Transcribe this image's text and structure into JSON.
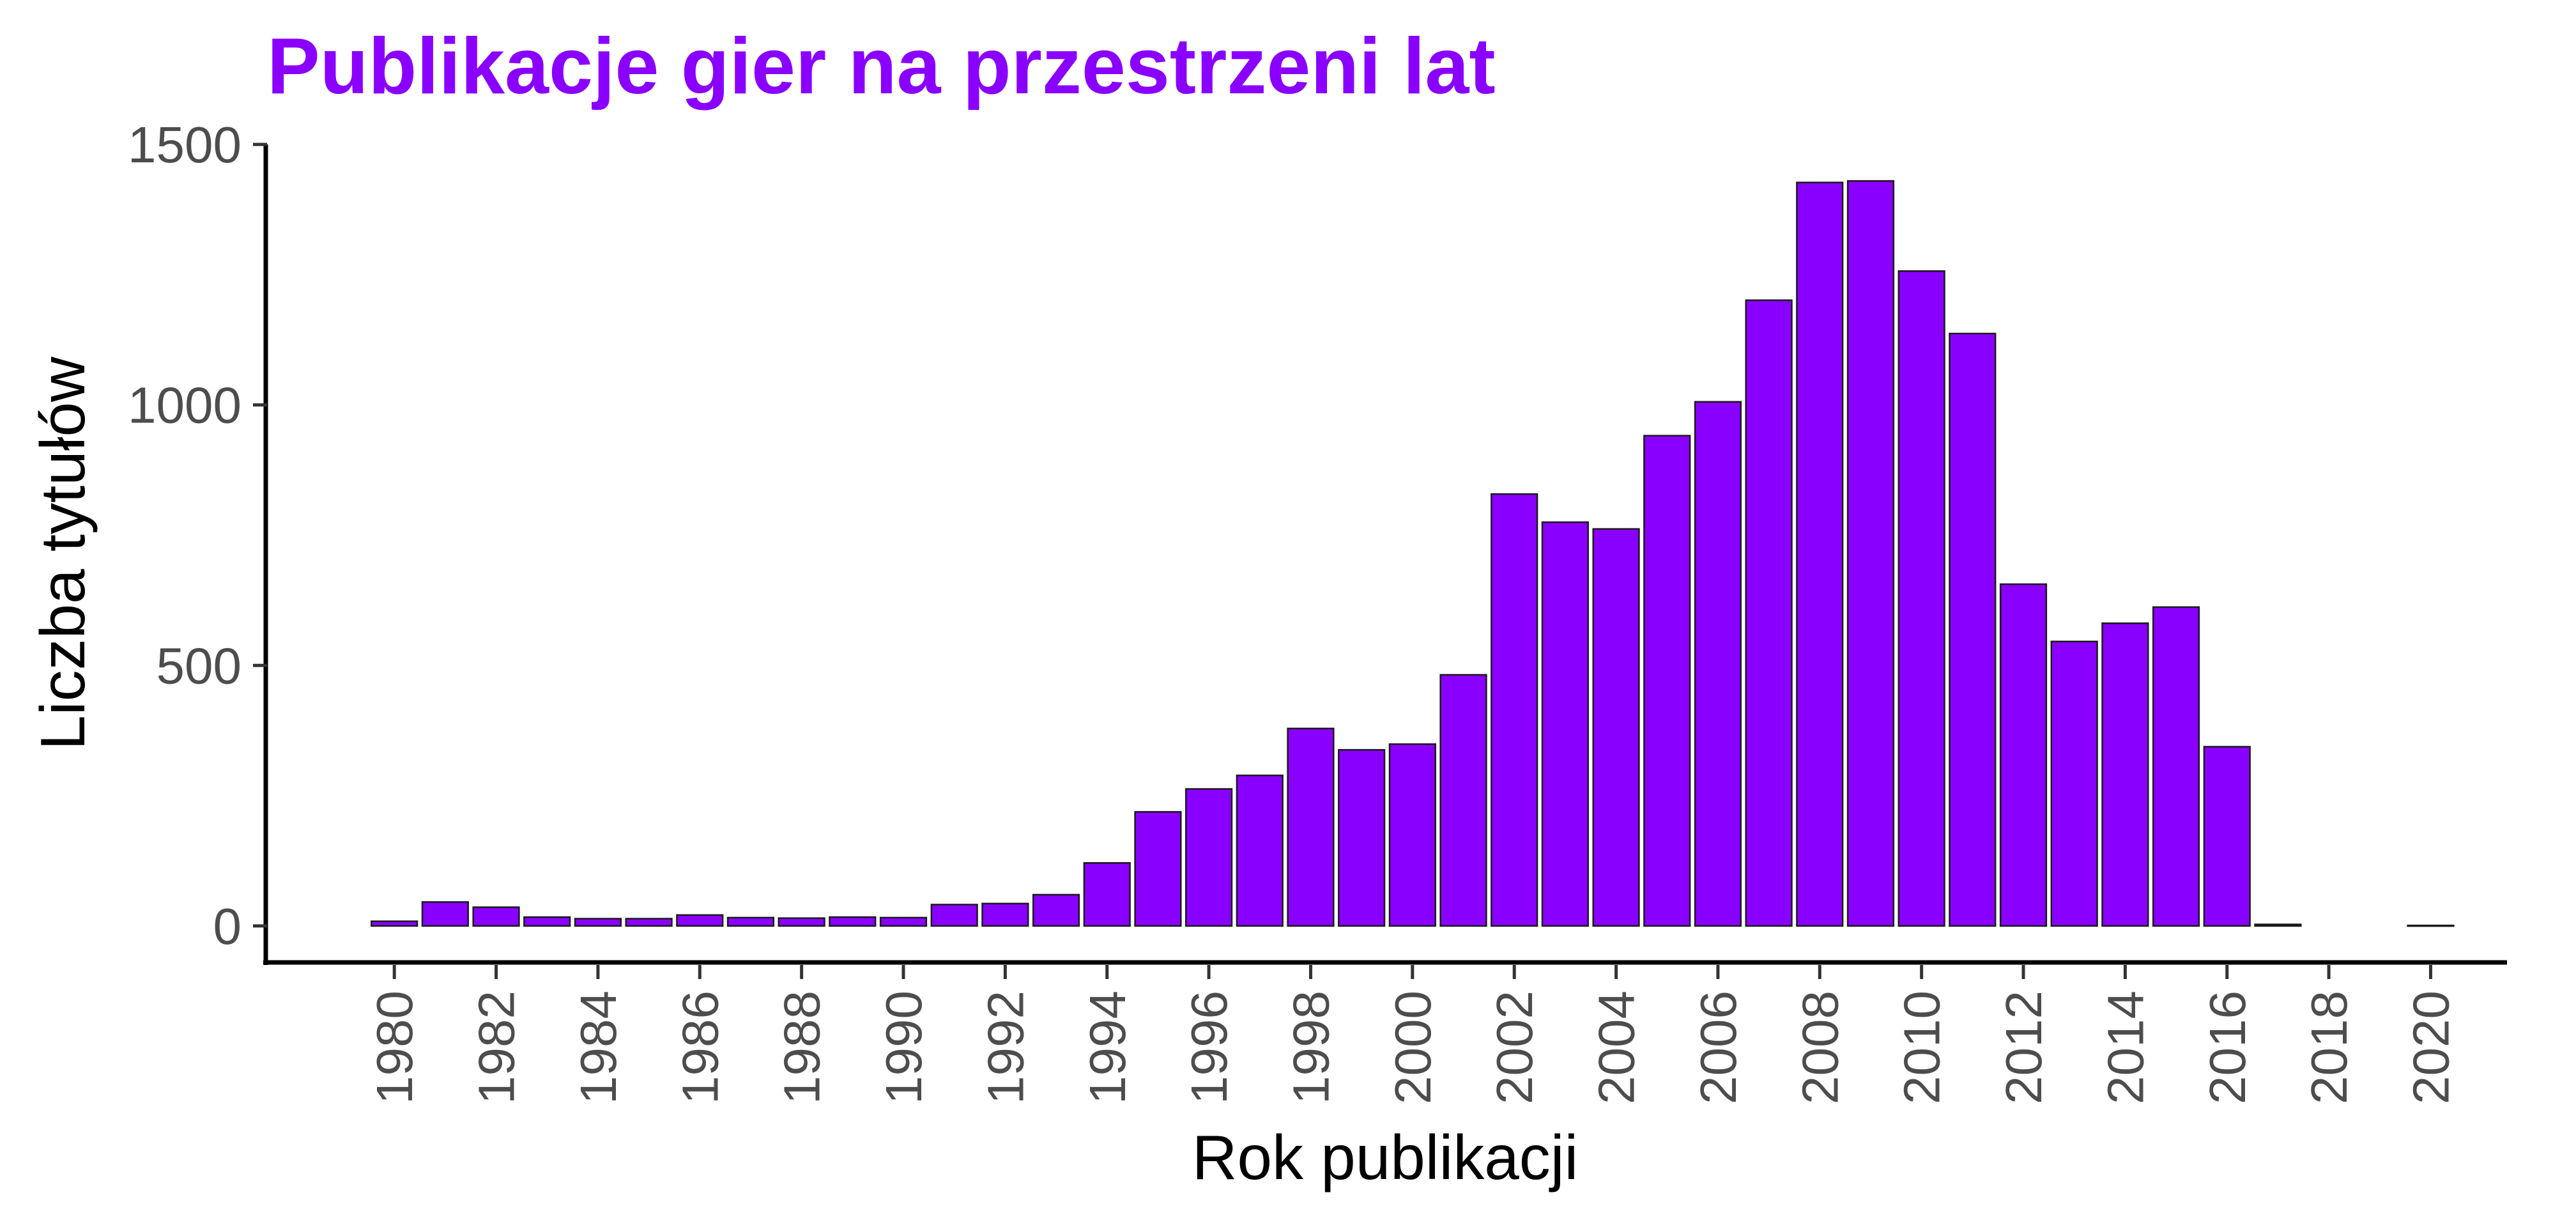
{
  "chart_data": {
    "type": "bar",
    "title": "Publikacje gier na przestrzeni lat",
    "xlabel": "Rok publikacji",
    "ylabel": "Liczba tytułów",
    "bar_color": "#8a00ff",
    "title_color": "#8a00ff",
    "ylim": [
      -70,
      1500
    ],
    "yticks": [
      0,
      500,
      1000,
      1500
    ],
    "xlim": [
      1977.5,
      2021.5
    ],
    "xticks": [
      1980,
      1982,
      1984,
      1986,
      1988,
      1990,
      1992,
      1994,
      1996,
      1998,
      2000,
      2002,
      2004,
      2006,
      2008,
      2010,
      2012,
      2014,
      2016,
      2018,
      2020
    ],
    "grid": false,
    "legend": "none",
    "x": [
      1980,
      1981,
      1982,
      1983,
      1984,
      1985,
      1986,
      1987,
      1988,
      1989,
      1990,
      1991,
      1992,
      1993,
      1994,
      1995,
      1996,
      1997,
      1998,
      1999,
      2000,
      2001,
      2002,
      2003,
      2004,
      2005,
      2006,
      2007,
      2008,
      2009,
      2010,
      2011,
      2012,
      2013,
      2014,
      2015,
      2016,
      2017,
      2020
    ],
    "values": [
      9,
      46,
      36,
      17,
      14,
      14,
      21,
      16,
      15,
      17,
      16,
      41,
      43,
      60,
      121,
      219,
      263,
      289,
      379,
      338,
      349,
      482,
      829,
      775,
      762,
      941,
      1006,
      1201,
      1427,
      1430,
      1257,
      1137,
      656,
      546,
      581,
      612,
      344,
      3,
      1
    ]
  }
}
